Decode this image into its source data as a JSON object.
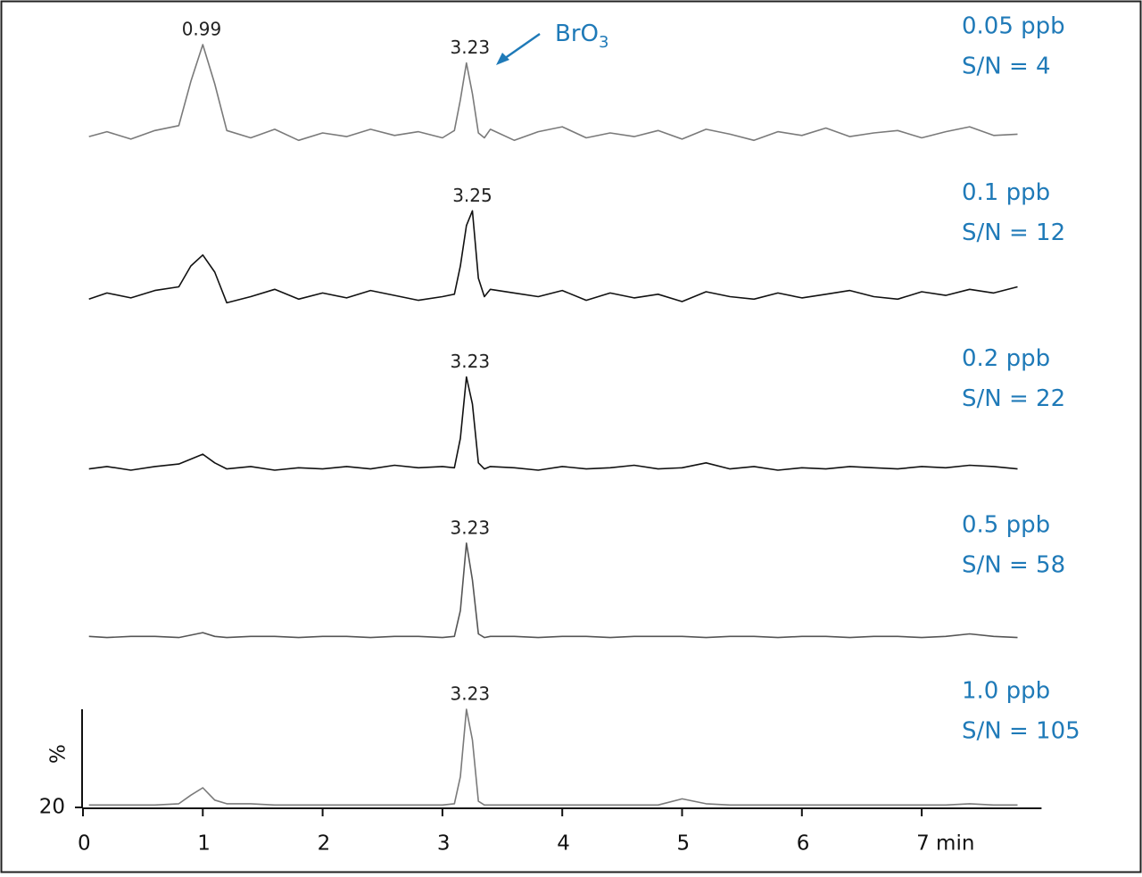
{
  "chart_data": {
    "type": "line",
    "annotation": {
      "text": "BrO",
      "subscript": "3"
    },
    "xlim": [
      0,
      8
    ],
    "xticks": [
      0,
      1,
      2,
      3,
      4,
      5,
      6,
      {
        "value": 7,
        "label": "7 min"
      }
    ],
    "ylabel": "%",
    "ylim": [
      20,
      100
    ],
    "yticks": [
      20
    ],
    "x": [
      0.05,
      0.2,
      0.4,
      0.6,
      0.8,
      0.9,
      1.0,
      1.1,
      1.2,
      1.4,
      1.6,
      1.8,
      2.0,
      2.2,
      2.4,
      2.6,
      2.8,
      3.0,
      3.1,
      3.15,
      3.2,
      3.25,
      3.3,
      3.35,
      3.4,
      3.6,
      3.8,
      4.0,
      4.2,
      4.4,
      4.6,
      4.8,
      5.0,
      5.2,
      5.4,
      5.6,
      5.8,
      6.0,
      6.2,
      6.4,
      6.6,
      6.8,
      7.0,
      7.2,
      7.4,
      7.6,
      7.8
    ],
    "series": [
      {
        "name": "0.05 ppb",
        "sn": "S/N = 4",
        "color": "#7a7a7a",
        "peaks": [
          0.99,
          3.23
        ],
        "values": [
          25,
          29,
          23,
          30,
          34,
          70,
          100,
          68,
          30,
          24,
          31,
          22,
          28,
          25,
          31,
          26,
          29,
          24,
          30,
          55,
          85,
          60,
          28,
          24,
          31,
          22,
          29,
          33,
          24,
          28,
          25,
          30,
          23,
          31,
          27,
          22,
          29,
          26,
          32,
          25,
          28,
          30,
          24,
          29,
          33,
          26,
          27
        ]
      },
      {
        "name": "0.1 ppb",
        "sn": "S/N = 12",
        "color": "#111111",
        "peaks": [
          3.25
        ],
        "values": [
          28,
          33,
          29,
          35,
          38,
          55,
          64,
          50,
          25,
          30,
          36,
          28,
          33,
          29,
          35,
          31,
          27,
          30,
          32,
          55,
          88,
          100,
          45,
          30,
          36,
          33,
          30,
          35,
          27,
          33,
          29,
          32,
          26,
          34,
          30,
          28,
          33,
          29,
          32,
          35,
          30,
          28,
          34,
          31,
          36,
          33,
          38
        ]
      },
      {
        "name": "0.2 ppb",
        "sn": "S/N = 22",
        "color": "#111111",
        "peaks": [
          3.23
        ],
        "values": [
          25,
          27,
          24,
          27,
          29,
          33,
          37,
          30,
          25,
          27,
          24,
          26,
          25,
          27,
          25,
          28,
          26,
          27,
          26,
          50,
          100,
          78,
          30,
          25,
          27,
          26,
          24,
          27,
          25,
          26,
          28,
          25,
          26,
          30,
          25,
          27,
          24,
          26,
          25,
          27,
          26,
          25,
          27,
          26,
          28,
          27,
          25
        ]
      },
      {
        "name": "0.5 ppb",
        "sn": "S/N = 58",
        "color": "#555555",
        "peaks": [
          3.23
        ],
        "values": [
          24,
          23,
          24,
          24,
          23,
          25,
          27,
          24,
          23,
          24,
          24,
          23,
          24,
          24,
          23,
          24,
          24,
          23,
          24,
          45,
          100,
          70,
          26,
          23,
          24,
          24,
          23,
          24,
          24,
          23,
          24,
          24,
          24,
          23,
          24,
          24,
          23,
          24,
          24,
          23,
          24,
          24,
          23,
          24,
          26,
          24,
          23
        ]
      },
      {
        "name": "1.0 ppb",
        "sn": "S/N = 105",
        "color": "#7a7a7a",
        "peaks": [
          3.23
        ],
        "values": [
          22,
          22,
          22,
          22,
          23,
          30,
          36,
          26,
          23,
          23,
          22,
          22,
          22,
          22,
          22,
          22,
          22,
          22,
          23,
          45,
          100,
          75,
          25,
          22,
          22,
          22,
          22,
          22,
          22,
          22,
          22,
          22,
          27,
          23,
          22,
          22,
          22,
          22,
          22,
          22,
          22,
          22,
          22,
          22,
          23,
          22,
          22
        ]
      }
    ]
  }
}
